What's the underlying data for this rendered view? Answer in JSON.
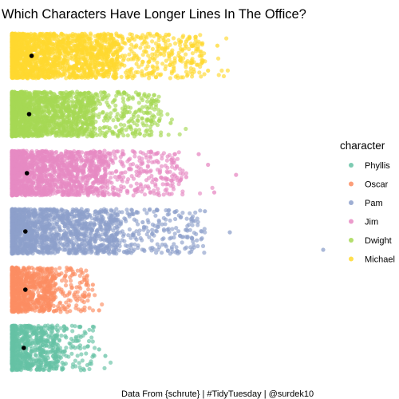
{
  "chart_data": {
    "type": "scatter",
    "subtype": "jitter-strip",
    "title": "Which Characters Have Longer Lines In The Office?",
    "caption": "Data From {schrute} | #TidyTuesday | @surdek10",
    "xlabel": "",
    "ylabel": "",
    "grid": false,
    "legend": {
      "title": "character",
      "position": "right",
      "entries": [
        "Phyllis",
        "Oscar",
        "Pam",
        "Jim",
        "Dwight",
        "Michael"
      ]
    },
    "series": [
      {
        "name": "Michael",
        "color": "#FFD92F",
        "n": 2200,
        "extent": 0.62,
        "maxFrac": 0.7,
        "spread": 0.42,
        "outliers": [
          0.66,
          0.63,
          0.61,
          0.59,
          0.57,
          0.56,
          0.54,
          0.52,
          0.5,
          0.49
        ]
      },
      {
        "name": "Dwight",
        "color": "#A6D854",
        "n": 1900,
        "extent": 0.48,
        "maxFrac": 0.58,
        "spread": 0.35,
        "outliers": [
          0.51,
          0.47,
          0.44,
          0.41,
          0.38,
          0.36,
          0.34
        ]
      },
      {
        "name": "Jim",
        "color": "#E78AC3",
        "n": 1900,
        "extent": 0.55,
        "maxFrac": 0.65,
        "spread": 0.36,
        "outliers": [
          0.72,
          0.65,
          0.63,
          0.6,
          0.56,
          0.53,
          0.5,
          0.47
        ]
      },
      {
        "name": "Pam",
        "color": "#8DA0CB",
        "n": 1800,
        "extent": 0.62,
        "maxFrac": 0.62,
        "spread": 0.34,
        "outliers": [
          1.0,
          0.7,
          0.62,
          0.5,
          0.45,
          0.42,
          0.39,
          0.36
        ]
      },
      {
        "name": "Oscar",
        "color": "#FC8D62",
        "n": 900,
        "extent": 0.25,
        "maxFrac": 0.3,
        "spread": 0.3,
        "outliers": [
          0.28,
          0.26,
          0.24
        ]
      },
      {
        "name": "Phyllis",
        "color": "#66C2A5",
        "n": 800,
        "extent": 0.27,
        "maxFrac": 0.32,
        "spread": 0.3,
        "outliers": [
          0.3,
          0.28,
          0.26
        ]
      }
    ],
    "medians": {
      "color": "#000000"
    }
  }
}
